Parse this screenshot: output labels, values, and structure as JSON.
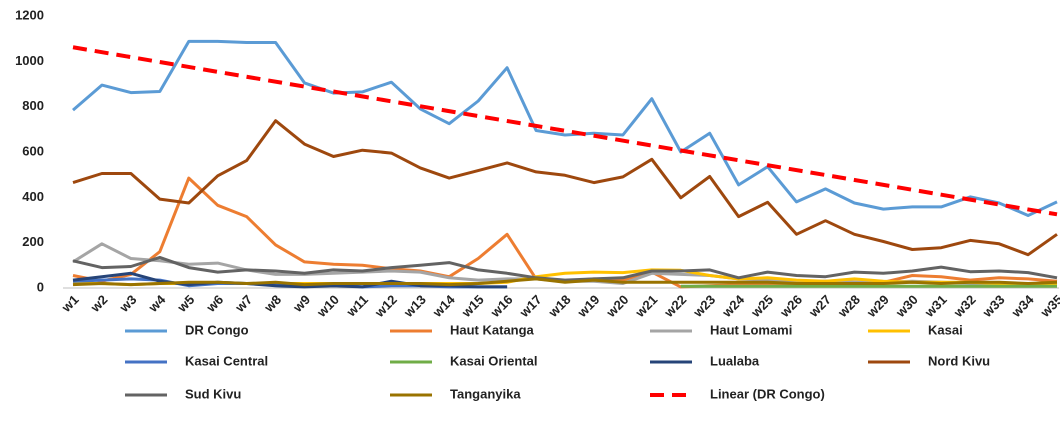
{
  "chart_data": {
    "type": "line",
    "categories": [
      "w1",
      "w2",
      "w3",
      "w4",
      "w5",
      "w6",
      "w7",
      "w8",
      "w9",
      "w10",
      "w11",
      "w12",
      "w13",
      "w14",
      "w15",
      "w16",
      "w17",
      "w18",
      "w19",
      "w20",
      "w21",
      "w22",
      "w23",
      "w24",
      "w25",
      "w26",
      "w27",
      "w28",
      "w29",
      "w30",
      "w31",
      "w32",
      "w33",
      "w34",
      "w35"
    ],
    "ylim": [
      0,
      1200
    ],
    "yticks": [
      0,
      200,
      400,
      600,
      800,
      1000,
      1200
    ],
    "grid": false,
    "legend": "bottom",
    "series": [
      {
        "name": "DR Congo",
        "color": "#5b9bd5",
        "values": [
          785,
          895,
          862,
          867,
          1088,
          1088,
          1083,
          1083,
          905,
          860,
          865,
          908,
          790,
          725,
          825,
          972,
          695,
          675,
          683,
          675,
          835,
          600,
          683,
          455,
          535,
          380,
          437,
          375,
          348,
          358,
          358,
          402,
          375,
          320,
          380
        ]
      },
      {
        "name": "Haut Katanga",
        "color": "#ed7d31",
        "values": [
          55,
          30,
          60,
          160,
          485,
          365,
          315,
          190,
          115,
          105,
          100,
          85,
          75,
          50,
          130,
          237,
          40,
          30,
          40,
          35,
          70,
          5,
          10,
          15,
          20,
          20,
          30,
          25,
          25,
          55,
          50,
          35,
          45,
          40,
          30
        ]
      },
      {
        "name": "Haut Lomami",
        "color": "#a5a5a5",
        "values": [
          115,
          195,
          130,
          120,
          105,
          110,
          80,
          60,
          60,
          65,
          70,
          75,
          70,
          45,
          35,
          40,
          40,
          30,
          30,
          20,
          65,
          60,
          55,
          40,
          35,
          30,
          30,
          25,
          25,
          30,
          25,
          20,
          20,
          20,
          20
        ]
      },
      {
        "name": "Kasai",
        "color": "#ffc000",
        "values": [
          20,
          20,
          15,
          20,
          20,
          20,
          20,
          20,
          20,
          20,
          20,
          20,
          20,
          20,
          20,
          25,
          50,
          65,
          70,
          68,
          80,
          78,
          55,
          40,
          45,
          35,
          30,
          40,
          30,
          25,
          25,
          25,
          20,
          20,
          20
        ]
      },
      {
        "name": "Kasai Central",
        "color": "#4472c4",
        "values": [
          30,
          35,
          40,
          35,
          10,
          20,
          20,
          15,
          10,
          15,
          5,
          10,
          10,
          5,
          5,
          5,
          null,
          null,
          null,
          null,
          null,
          null,
          null,
          null,
          null,
          null,
          null,
          null,
          null,
          null,
          null,
          null,
          null,
          null,
          null
        ]
      },
      {
        "name": "Kasai Oriental",
        "color": "#70ad47",
        "values": [
          null,
          null,
          null,
          null,
          null,
          null,
          null,
          null,
          null,
          null,
          null,
          null,
          null,
          null,
          null,
          null,
          null,
          null,
          null,
          null,
          null,
          8,
          8,
          8,
          8,
          8,
          8,
          8,
          8,
          8,
          8,
          8,
          8,
          8,
          8
        ]
      },
      {
        "name": "Lualaba",
        "color": "#264478",
        "values": [
          35,
          50,
          65,
          30,
          15,
          25,
          20,
          10,
          5,
          10,
          5,
          30,
          10,
          10,
          5,
          5,
          null,
          null,
          null,
          null,
          null,
          null,
          null,
          null,
          null,
          null,
          null,
          null,
          null,
          null,
          null,
          null,
          null,
          null,
          null
        ]
      },
      {
        "name": "Nord Kivu",
        "color": "#9e480e",
        "values": [
          465,
          505,
          505,
          392,
          375,
          495,
          562,
          738,
          635,
          580,
          608,
          595,
          530,
          485,
          518,
          552,
          512,
          497,
          465,
          490,
          568,
          398,
          492,
          315,
          378,
          237,
          297,
          237,
          205,
          170,
          178,
          210,
          195,
          147,
          237
        ]
      },
      {
        "name": "Sud Kivu",
        "color": "#636363",
        "values": [
          120,
          90,
          95,
          135,
          90,
          70,
          80,
          75,
          65,
          80,
          75,
          90,
          100,
          112,
          80,
          65,
          45,
          35,
          40,
          45,
          75,
          75,
          80,
          45,
          70,
          55,
          50,
          70,
          65,
          75,
          92,
          72,
          75,
          68,
          45
        ]
      },
      {
        "name": "Tanganyika",
        "color": "#997300",
        "values": [
          15,
          20,
          15,
          20,
          25,
          25,
          20,
          25,
          15,
          20,
          20,
          20,
          20,
          15,
          20,
          30,
          40,
          25,
          35,
          25,
          25,
          25,
          25,
          25,
          25,
          20,
          20,
          20,
          20,
          25,
          20,
          25,
          25,
          20,
          25
        ]
      }
    ],
    "trendline": {
      "name": "Linear (DR Congo)",
      "color": "#ff0000",
      "start": 1062,
      "end": 325
    }
  }
}
